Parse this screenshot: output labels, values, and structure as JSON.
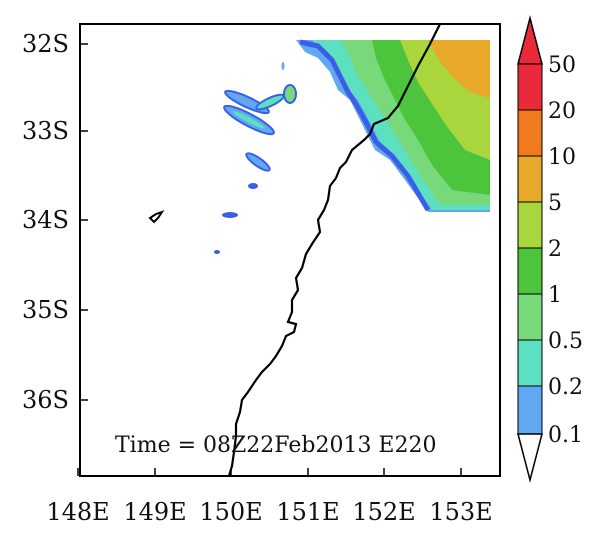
{
  "map": {
    "lat_ticks": [
      "32S",
      "33S",
      "34S",
      "35S",
      "36S"
    ],
    "lon_ticks": [
      "148E",
      "149E",
      "150E",
      "151E",
      "152E",
      "153E"
    ],
    "time_label": "Time = 08Z22Feb2013 E220"
  },
  "colorbar": {
    "levels": [
      "50",
      "20",
      "10",
      "5",
      "2",
      "1",
      "0.5",
      "0.2",
      "0.1"
    ],
    "colors": [
      "#ea2a3a",
      "#f27a1e",
      "#e8a82a",
      "#a8d63c",
      "#4cc43c",
      "#78d97a",
      "#5ce0c0",
      "#62a8f0",
      "#3a5ee8"
    ],
    "top_arrow_color": "#ea2a3a",
    "bottom_arrow_color": "#ffffff"
  }
}
